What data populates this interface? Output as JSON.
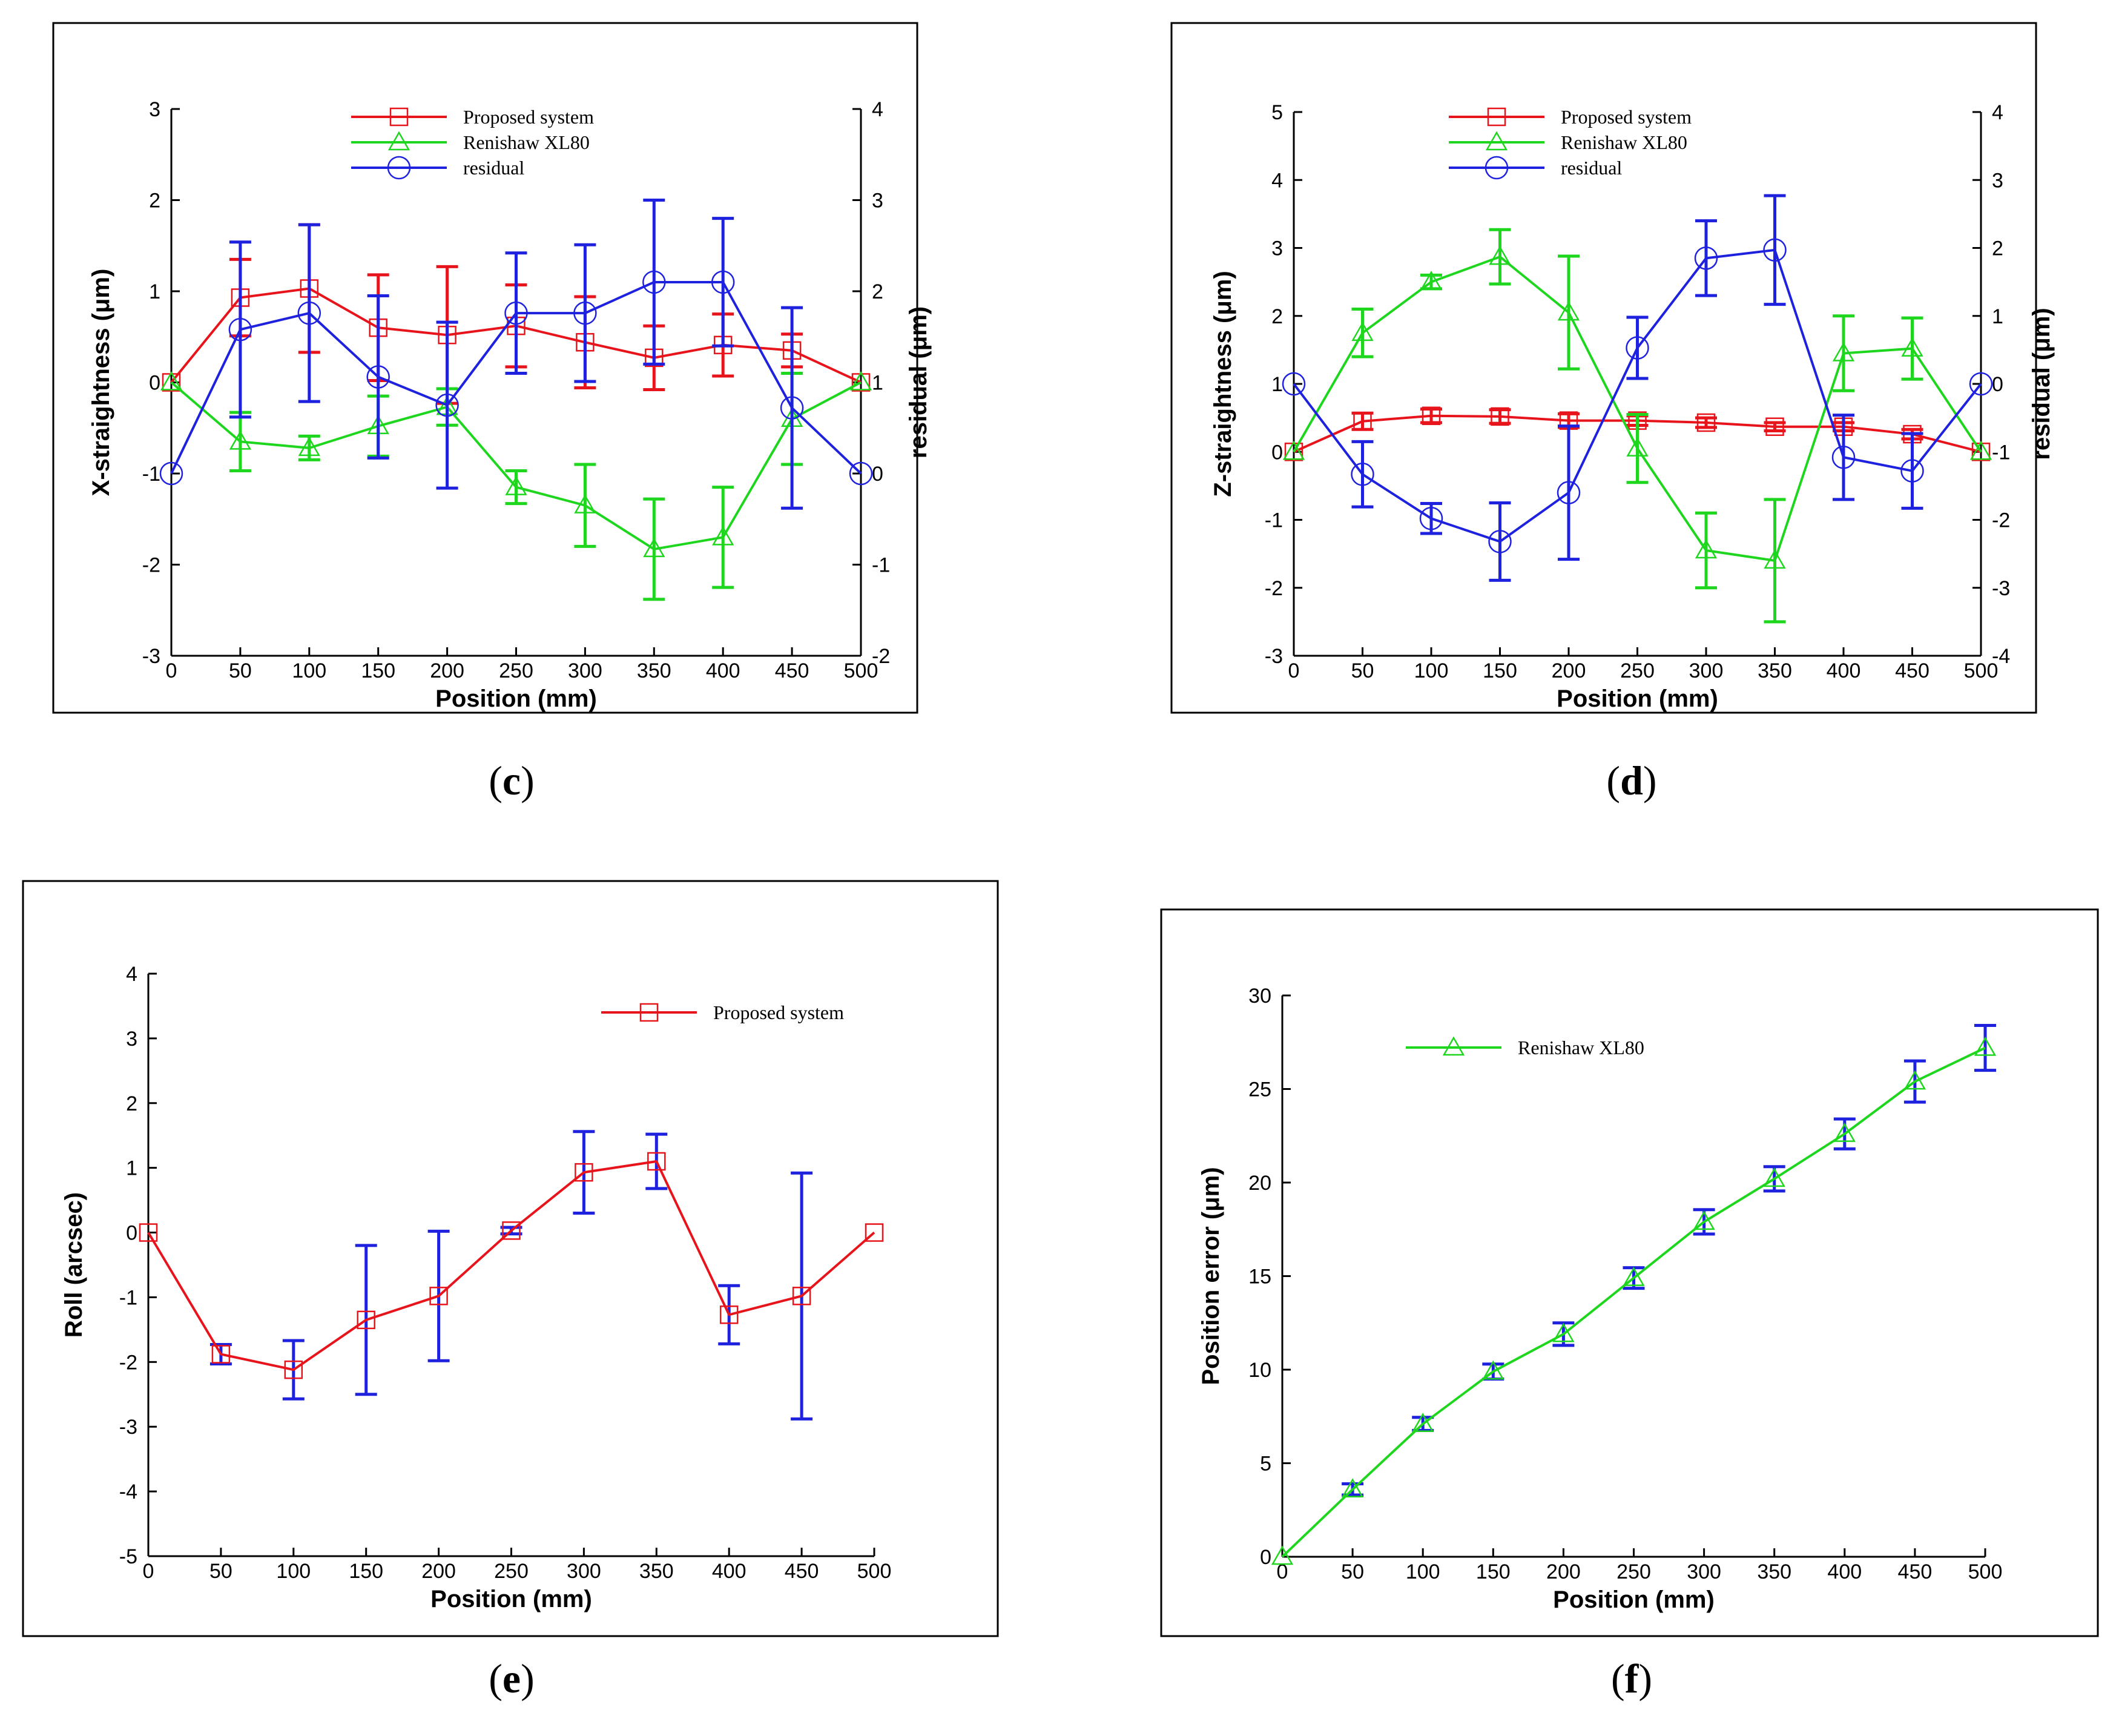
{
  "panels": [
    {
      "letter": "c",
      "panel_label": "(c)",
      "title": "",
      "xlabel": "Position (mm)",
      "ylabel": "X-straightness (μm)",
      "y2label": "residual (μm)",
      "xlim": [
        0,
        500
      ],
      "ylim": [
        -3,
        3
      ],
      "y2lim": [
        -2,
        4
      ],
      "xticks": [
        0,
        50,
        100,
        150,
        200,
        250,
        300,
        350,
        400,
        450,
        500
      ],
      "yticks": [
        -3,
        -2,
        -1,
        0,
        1,
        2,
        3
      ],
      "y2ticks": [
        -2,
        -1,
        0,
        1,
        2,
        3,
        4
      ],
      "legend": [
        "Proposed system",
        "Renishaw XL80",
        "residual"
      ],
      "x": [
        0,
        50,
        100,
        150,
        200,
        250,
        300,
        350,
        400,
        450,
        500
      ],
      "series": [
        {
          "name": "Proposed system",
          "color": "#e8141c",
          "marker": "square",
          "axis": "left",
          "values": [
            0,
            0.93,
            1.03,
            0.6,
            0.52,
            0.62,
            0.44,
            0.27,
            0.41,
            0.35,
            0
          ],
          "err": [
            0,
            0.42,
            0.7,
            0.58,
            0.75,
            0.45,
            0.5,
            0.35,
            0.34,
            0.18,
            0
          ]
        },
        {
          "name": "Renishaw XL80",
          "color": "#1dd61d",
          "marker": "triangle",
          "axis": "left",
          "values": [
            0,
            -0.65,
            -0.72,
            -0.48,
            -0.27,
            -1.15,
            -1.35,
            -1.83,
            -1.7,
            -0.4,
            0
          ],
          "err": [
            0,
            0.32,
            0.13,
            0.33,
            0.2,
            0.18,
            0.45,
            0.55,
            0.55,
            0.5,
            0
          ]
        },
        {
          "name": "residual",
          "color": "#1e22de",
          "marker": "circle",
          "axis": "right",
          "values": [
            0,
            1.58,
            1.76,
            1.06,
            0.75,
            1.76,
            1.76,
            2.1,
            2.1,
            0.72,
            0
          ],
          "err": [
            0,
            0.96,
            0.97,
            0.89,
            0.91,
            0.66,
            0.75,
            0.9,
            0.7,
            1.1,
            0
          ]
        }
      ]
    },
    {
      "letter": "d",
      "panel_label": "(d)",
      "title": "",
      "xlabel": "Position (mm)",
      "ylabel": "Z-straightness (μm)",
      "y2label": "residual (μm)",
      "xlim": [
        0,
        500
      ],
      "ylim": [
        -3,
        5
      ],
      "y2lim": [
        -4,
        4
      ],
      "xticks": [
        0,
        50,
        100,
        150,
        200,
        250,
        300,
        350,
        400,
        450,
        500
      ],
      "yticks": [
        -3,
        -2,
        -1,
        0,
        1,
        2,
        3,
        4,
        5
      ],
      "y2ticks": [
        -4,
        -3,
        -2,
        -1,
        0,
        1,
        2,
        3,
        4
      ],
      "legend": [
        "Proposed system",
        "Renishaw XL80",
        "residual"
      ],
      "x": [
        0,
        50,
        100,
        150,
        200,
        250,
        300,
        350,
        400,
        450,
        500
      ],
      "series": [
        {
          "name": "Proposed system",
          "color": "#e8141c",
          "marker": "square",
          "axis": "left",
          "values": [
            0,
            0.45,
            0.53,
            0.52,
            0.46,
            0.46,
            0.43,
            0.37,
            0.37,
            0.26,
            0
          ],
          "err": [
            0,
            0.12,
            0.1,
            0.1,
            0.1,
            0.07,
            0.07,
            0.06,
            0.06,
            0.07,
            0
          ]
        },
        {
          "name": "Renishaw XL80",
          "color": "#1dd61d",
          "marker": "triangle",
          "axis": "left",
          "values": [
            0,
            1.75,
            2.5,
            2.87,
            2.05,
            0.05,
            -1.45,
            -1.6,
            1.45,
            1.52,
            0
          ],
          "err": [
            0,
            0.35,
            0.1,
            0.4,
            0.83,
            0.5,
            0.55,
            0.9,
            0.55,
            0.45,
            0
          ]
        },
        {
          "name": "residual",
          "color": "#1e22de",
          "marker": "circle",
          "axis": "right",
          "values": [
            0,
            -1.33,
            -1.98,
            -2.32,
            -1.6,
            0.53,
            1.85,
            1.97,
            -1.08,
            -1.28,
            0
          ],
          "err": [
            0,
            0.48,
            0.22,
            0.57,
            0.98,
            0.45,
            0.55,
            0.8,
            0.62,
            0.55,
            0
          ]
        }
      ]
    },
    {
      "letter": "e",
      "panel_label": "(e)",
      "title": "",
      "xlabel": "Position (mm)",
      "ylabel": "Roll (arcsec)",
      "xlim": [
        0,
        500
      ],
      "ylim": [
        -5,
        4
      ],
      "xticks": [
        0,
        50,
        100,
        150,
        200,
        250,
        300,
        350,
        400,
        450,
        500
      ],
      "yticks": [
        -5,
        -4,
        -3,
        -2,
        -1,
        0,
        1,
        2,
        3,
        4
      ],
      "legend": [
        "Proposed system"
      ],
      "x": [
        0,
        50,
        100,
        150,
        200,
        250,
        300,
        350,
        400,
        450,
        500
      ],
      "series": [
        {
          "name": "Proposed system",
          "color": "#e8141c",
          "marker": "square",
          "axis": "left",
          "errcolor": "#1e22de",
          "values": [
            0,
            -1.88,
            -2.12,
            -1.35,
            -0.98,
            0.03,
            0.93,
            1.1,
            -1.27,
            -0.98,
            0
          ],
          "err": [
            0,
            0.15,
            0.45,
            1.15,
            1.0,
            0.05,
            0.63,
            0.42,
            0.45,
            1.9,
            0
          ]
        }
      ]
    },
    {
      "letter": "f",
      "panel_label": "(f)",
      "title": "",
      "xlabel": "Position (mm)",
      "ylabel": "Position error (μm)",
      "xlim": [
        0,
        500
      ],
      "ylim": [
        0,
        30
      ],
      "xticks": [
        0,
        50,
        100,
        150,
        200,
        250,
        300,
        350,
        400,
        450,
        500
      ],
      "yticks": [
        0,
        5,
        10,
        15,
        20,
        25,
        30
      ],
      "legend": [
        "Renishaw XL80"
      ],
      "x": [
        0,
        50,
        100,
        150,
        200,
        250,
        300,
        350,
        400,
        450,
        500
      ],
      "series": [
        {
          "name": "Renishaw XL80",
          "color": "#1dd61d",
          "marker": "triangle",
          "axis": "left",
          "errcolor": "#1e22de",
          "values": [
            0,
            3.6,
            7.1,
            9.9,
            11.9,
            14.9,
            17.9,
            20.2,
            22.6,
            25.4,
            27.2
          ],
          "err": [
            0,
            0.3,
            0.35,
            0.4,
            0.6,
            0.55,
            0.65,
            0.65,
            0.8,
            1.1,
            1.2
          ]
        }
      ]
    }
  ],
  "chart_data": [
    {
      "type": "line",
      "panel": "(c)",
      "title": "",
      "xlabel": "Position (mm)",
      "ylabel": "X-straightness (μm)",
      "y2label": "residual (μm)",
      "x": [
        0,
        50,
        100,
        150,
        200,
        250,
        300,
        350,
        400,
        450,
        500
      ],
      "ylim": [
        -3,
        3
      ],
      "y2lim": [
        -2,
        4
      ],
      "series": [
        {
          "name": "Proposed system",
          "values": [
            0,
            0.93,
            1.03,
            0.6,
            0.52,
            0.62,
            0.44,
            0.27,
            0.41,
            0.35,
            0
          ]
        },
        {
          "name": "Renishaw XL80",
          "values": [
            0,
            -0.65,
            -0.72,
            -0.48,
            -0.27,
            -1.15,
            -1.35,
            -1.83,
            -1.7,
            -0.4,
            0
          ]
        },
        {
          "name": "residual",
          "axis": "right",
          "values": [
            0,
            1.58,
            1.76,
            1.06,
            0.75,
            1.76,
            1.76,
            2.1,
            2.1,
            0.72,
            0
          ]
        }
      ]
    },
    {
      "type": "line",
      "panel": "(d)",
      "title": "",
      "xlabel": "Position (mm)",
      "ylabel": "Z-straightness (μm)",
      "y2label": "residual (μm)",
      "x": [
        0,
        50,
        100,
        150,
        200,
        250,
        300,
        350,
        400,
        450,
        500
      ],
      "ylim": [
        -3,
        5
      ],
      "y2lim": [
        -4,
        4
      ],
      "series": [
        {
          "name": "Proposed system",
          "values": [
            0,
            0.45,
            0.53,
            0.52,
            0.46,
            0.46,
            0.43,
            0.37,
            0.37,
            0.26,
            0
          ]
        },
        {
          "name": "Renishaw XL80",
          "values": [
            0,
            1.75,
            2.5,
            2.87,
            2.05,
            0.05,
            -1.45,
            -1.6,
            1.45,
            1.52,
            0
          ]
        },
        {
          "name": "residual",
          "axis": "right",
          "values": [
            0,
            -1.33,
            -1.98,
            -2.32,
            -1.6,
            0.53,
            1.85,
            1.97,
            -1.08,
            -1.28,
            0
          ]
        }
      ]
    },
    {
      "type": "line",
      "panel": "(e)",
      "title": "",
      "xlabel": "Position (mm)",
      "ylabel": "Roll (arcsec)",
      "x": [
        0,
        50,
        100,
        150,
        200,
        250,
        300,
        350,
        400,
        450,
        500
      ],
      "ylim": [
        -5,
        4
      ],
      "series": [
        {
          "name": "Proposed system",
          "values": [
            0,
            -1.88,
            -2.12,
            -1.35,
            -0.98,
            0.03,
            0.93,
            1.1,
            -1.27,
            -0.98,
            0
          ]
        }
      ]
    },
    {
      "type": "line",
      "panel": "(f)",
      "title": "",
      "xlabel": "Position (mm)",
      "ylabel": "Position error (μm)",
      "x": [
        0,
        50,
        100,
        150,
        200,
        250,
        300,
        350,
        400,
        450,
        500
      ],
      "ylim": [
        0,
        30
      ],
      "series": [
        {
          "name": "Renishaw XL80",
          "values": [
            0,
            3.6,
            7.1,
            9.9,
            11.9,
            14.9,
            17.9,
            20.2,
            22.6,
            25.4,
            27.2
          ]
        }
      ]
    }
  ]
}
